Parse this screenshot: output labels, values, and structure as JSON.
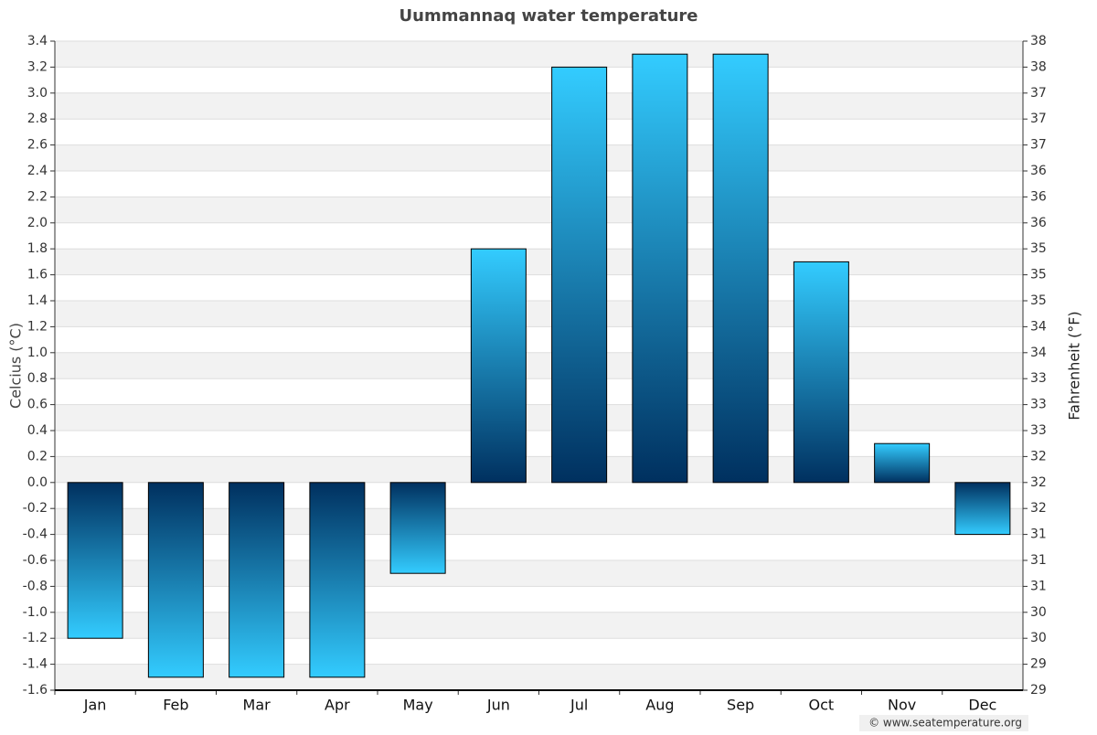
{
  "chart_data": {
    "type": "bar",
    "title": "Uummannaq water temperature",
    "y_label": "Celcius (°C)",
    "y2_label": "Fahrenheit (°F)",
    "credit": "© www.seatemperature.org",
    "categories": [
      "Jan",
      "Feb",
      "Mar",
      "Apr",
      "May",
      "Jun",
      "Jul",
      "Aug",
      "Sep",
      "Oct",
      "Nov",
      "Dec"
    ],
    "values": [
      -1.2,
      -1.5,
      -1.5,
      -1.5,
      -0.7,
      1.8,
      3.2,
      3.3,
      3.3,
      1.7,
      0.3,
      -0.4
    ],
    "gradient": [
      "#33ccff",
      "#00305f"
    ],
    "ylim": [
      -1.6,
      3.4
    ],
    "yticks": [
      3.4,
      3.2,
      {
        "value": 3.0,
        "label": "3.0"
      },
      2.8,
      2.6,
      2.4,
      2.2,
      {
        "value": 2.0,
        "label": "2.0"
      },
      1.8,
      1.6,
      1.4,
      1.2,
      {
        "value": 1.0,
        "label": "1.0"
      },
      0.8,
      0.6,
      0.4,
      0.2,
      {
        "value": 0,
        "label": "0.0"
      },
      -0.2,
      -0.4,
      -0.6,
      -0.8,
      {
        "value": -1.0,
        "label": "-1.0"
      },
      -1.2,
      -1.4,
      -1.6
    ],
    "y2lim": [
      29.12,
      38.12
    ],
    "y2ticks": [
      {
        "value": 38.12,
        "label": "38"
      },
      {
        "value": 37.76,
        "label": "38"
      },
      {
        "value": 37.4,
        "label": "37"
      },
      {
        "value": 37.04,
        "label": "37"
      },
      {
        "value": 36.68,
        "label": "37"
      },
      {
        "value": 36.32,
        "label": "36"
      },
      {
        "value": 35.96,
        "label": "36"
      },
      {
        "value": 35.6,
        "label": "36"
      },
      {
        "value": 35.24,
        "label": "35"
      },
      {
        "value": 34.88,
        "label": "35"
      },
      {
        "value": 34.52,
        "label": "35"
      },
      {
        "value": 34.16,
        "label": "34"
      },
      {
        "value": 33.8,
        "label": "34"
      },
      {
        "value": 33.44,
        "label": "33"
      },
      {
        "value": 33.08,
        "label": "33"
      },
      {
        "value": 32.72,
        "label": "33"
      },
      {
        "value": 32.36,
        "label": "32"
      },
      32,
      {
        "value": 31.64,
        "label": "32"
      },
      {
        "value": 31.28,
        "label": "31"
      },
      {
        "value": 30.92,
        "label": "31"
      },
      {
        "value": 30.56,
        "label": "31"
      },
      {
        "value": 30.2,
        "label": "30"
      },
      {
        "value": 29.84,
        "label": "30"
      },
      {
        "value": 29.48,
        "label": "29"
      },
      {
        "value": 29.12,
        "label": "29"
      }
    ],
    "grid": true
  }
}
